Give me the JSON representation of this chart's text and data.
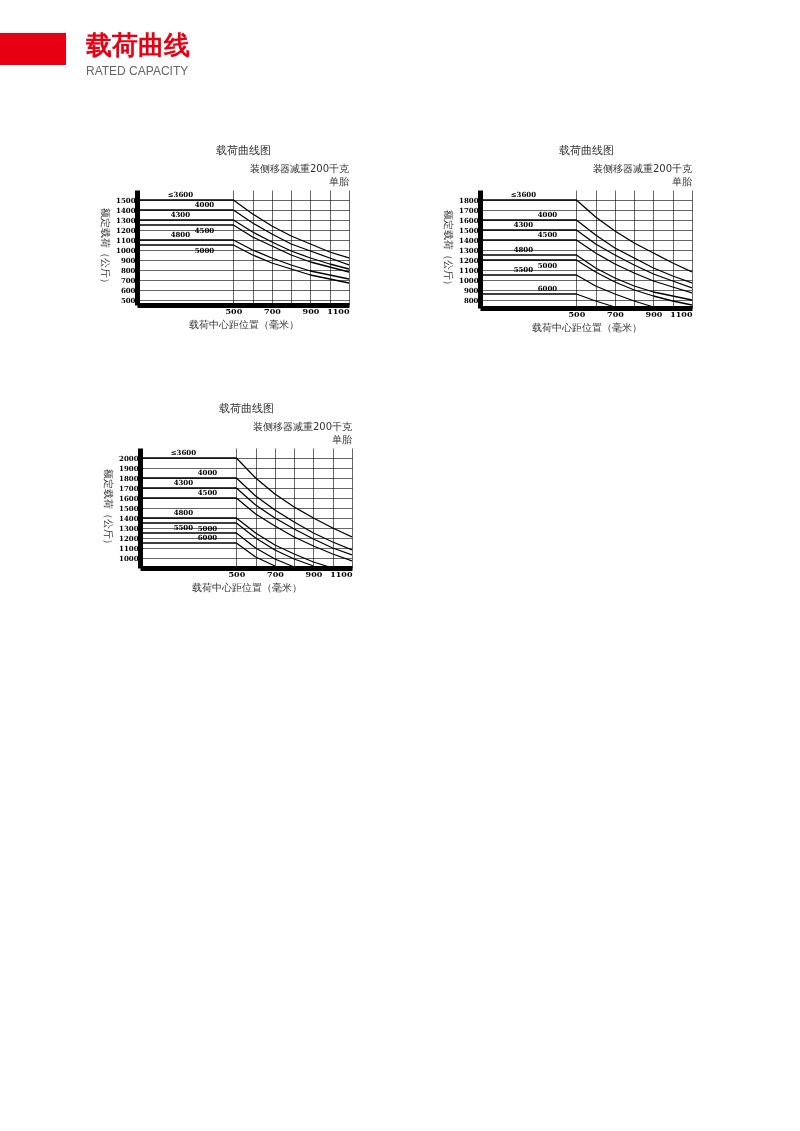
{
  "chart_data": [
    {
      "type": "line",
      "title": "载荷曲线图",
      "xlabel": "载荷中心距位置（毫米）",
      "ylabel": "额定载荷（公斤）",
      "annotations": [
        "载荷曲线",
        "RATED CAPACITY",
        "装侧移器减重200千克",
        "单胎"
      ],
      "x": [
        0,
        500,
        600,
        700,
        800,
        900,
        1000,
        1100
      ],
      "xlim": [
        0,
        1100
      ],
      "xticks": [
        500,
        {
          "value": 600,
          "label": null
        },
        700,
        {
          "value": 800,
          "label": null
        },
        900,
        {
          "value": 1000,
          "label": null
        },
        1100
      ],
      "ylim": [
        450,
        1600
      ],
      "yticks": [
        500,
        600,
        700,
        800,
        900,
        1000,
        1100,
        1200,
        1300,
        1400,
        1500
      ],
      "grid": true,
      "legend": false,
      "series": [
        {
          "name": "≤3600",
          "color": "#000000",
          "values": [
            1500,
            1500,
            1360,
            1240,
            1140,
            1060,
            980,
            920
          ]
        },
        {
          "name": "4000",
          "color": "#000000",
          "values": [
            1400,
            1400,
            1270,
            1160,
            1060,
            990,
            920,
            850
          ]
        },
        {
          "name": "4300",
          "color": "#000000",
          "values": [
            1300,
            1300,
            1180,
            1080,
            990,
            920,
            860,
            810
          ]
        },
        {
          "name": "4500",
          "color": "#000000",
          "values": [
            1250,
            1250,
            1130,
            1040,
            950,
            880,
            830,
            780
          ]
        },
        {
          "name": "4800",
          "color": "#000000",
          "values": [
            1100,
            1100,
            1000,
            920,
            850,
            790,
            750,
            710
          ]
        },
        {
          "name": "5000",
          "color": "#000000",
          "values": [
            1050,
            1050,
            950,
            870,
            810,
            750,
            710,
            670
          ]
        }
      ]
    },
    {
      "type": "line",
      "title": "载荷曲线图",
      "xlabel": "载荷中心距位置（毫米）",
      "ylabel": "额定载荷（公斤）",
      "annotations": [
        "装侧移器减重200千克",
        "单胎"
      ],
      "x": [
        0,
        500,
        600,
        700,
        800,
        900,
        1000,
        1100
      ],
      "xlim": [
        0,
        1100
      ],
      "xticks": [
        500,
        {
          "value": 600,
          "label": null
        },
        700,
        {
          "value": 800,
          "label": null
        },
        900,
        {
          "value": 1000,
          "label": null
        },
        1100
      ],
      "ylim": [
        720,
        1900
      ],
      "yticks": [
        800,
        900,
        1000,
        1100,
        1200,
        1300,
        1400,
        1500,
        1600,
        1700,
        1800
      ],
      "grid": true,
      "legend": false,
      "series": [
        {
          "name": "≤3600",
          "color": "#000000",
          "values": [
            1800,
            1800,
            1630,
            1490,
            1370,
            1270,
            1170,
            1080
          ]
        },
        {
          "name": "4000",
          "color": "#000000",
          "values": [
            1600,
            1600,
            1450,
            1320,
            1220,
            1120,
            1040,
            970
          ]
        },
        {
          "name": "4300",
          "color": "#000000",
          "values": [
            1500,
            1500,
            1360,
            1250,
            1150,
            1060,
            990,
            920
          ]
        },
        {
          "name": "4500",
          "color": "#000000",
          "values": [
            1400,
            1400,
            1270,
            1160,
            1070,
            990,
            930,
            870
          ]
        },
        {
          "name": "4800",
          "color": "#000000",
          "values": [
            1250,
            1250,
            1120,
            1020,
            940,
            880,
            840,
            800
          ]
        },
        {
          "name": "5000",
          "color": "#000000",
          "values": [
            1200,
            1200,
            1080,
            980,
            900,
            840,
            790,
            750
          ]
        },
        {
          "name": "5500",
          "color": "#000000",
          "values": [
            1050,
            1050,
            940,
            860,
            790,
            730,
            null,
            null
          ]
        },
        {
          "name": "6000",
          "color": "#000000",
          "values": [
            860,
            860,
            790,
            730,
            null,
            null,
            null,
            null
          ]
        }
      ]
    },
    {
      "type": "line",
      "title": "载荷曲线图",
      "xlabel": "载荷中心距位置（毫米）",
      "ylabel": "额定载荷（公斤）",
      "annotations": [
        "装侧移器减重200千克",
        "单胎"
      ],
      "x": [
        0,
        500,
        600,
        700,
        800,
        900,
        1000,
        1100
      ],
      "xlim": [
        0,
        1100
      ],
      "xticks": [
        500,
        {
          "value": 600,
          "label": null
        },
        700,
        {
          "value": 800,
          "label": null
        },
        900,
        {
          "value": 1000,
          "label": null
        },
        1100
      ],
      "ylim": [
        900,
        2100
      ],
      "yticks": [
        1000,
        1100,
        1200,
        1300,
        1400,
        1500,
        1600,
        1700,
        1800,
        1900,
        2000
      ],
      "grid": true,
      "legend": false,
      "series": [
        {
          "name": "≤3600",
          "color": "#000000",
          "values": [
            2000,
            2000,
            1800,
            1640,
            1510,
            1400,
            1300,
            1210
          ]
        },
        {
          "name": "4000",
          "color": "#000000",
          "values": [
            1800,
            1800,
            1620,
            1480,
            1360,
            1250,
            1160,
            1080
          ]
        },
        {
          "name": "4300",
          "color": "#000000",
          "values": [
            1700,
            1700,
            1530,
            1400,
            1290,
            1190,
            1100,
            1030
          ]
        },
        {
          "name": "4500",
          "color": "#000000",
          "values": [
            1600,
            1600,
            1440,
            1320,
            1210,
            1120,
            1040,
            970
          ]
        },
        {
          "name": "4800",
          "color": "#000000",
          "values": [
            1400,
            1400,
            1250,
            1130,
            1040,
            960,
            900,
            null
          ]
        },
        {
          "name": "5000",
          "color": "#000000",
          "values": [
            1350,
            1350,
            1200,
            1080,
            990,
            920,
            null,
            null
          ]
        },
        {
          "name": "5500",
          "color": "#000000",
          "values": [
            1250,
            1250,
            1100,
            990,
            910,
            null,
            null,
            null
          ]
        },
        {
          "name": "6000",
          "color": "#000000",
          "values": [
            1150,
            1150,
            1010,
            920,
            null,
            null,
            null,
            null
          ]
        }
      ]
    }
  ]
}
